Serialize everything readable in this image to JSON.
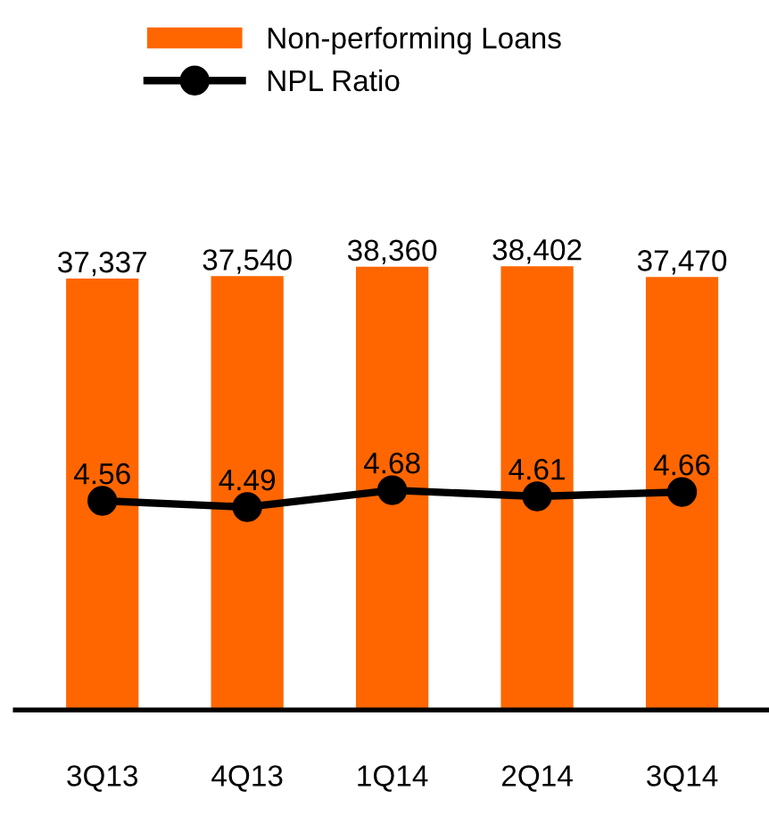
{
  "chart_data": {
    "type": "bar",
    "categories": [
      "3Q13",
      "4Q13",
      "1Q14",
      "2Q14",
      "3Q14"
    ],
    "series": [
      {
        "name": "Non-performing Loans",
        "type": "bar",
        "color": "#ff6600",
        "values": [
          37337,
          37540,
          38360,
          38402,
          37470
        ],
        "value_labels": [
          "37,337",
          "37,540",
          "38,360",
          "38,402",
          "37,470"
        ]
      },
      {
        "name": "NPL Ratio",
        "type": "line",
        "axis": "y2",
        "color": "#000000",
        "marker": "circle",
        "values": [
          4.56,
          4.49,
          4.68,
          4.61,
          4.66
        ]
      }
    ],
    "data_labels": true,
    "tick_labels": "x",
    "legend": "top",
    "grid": false
  }
}
